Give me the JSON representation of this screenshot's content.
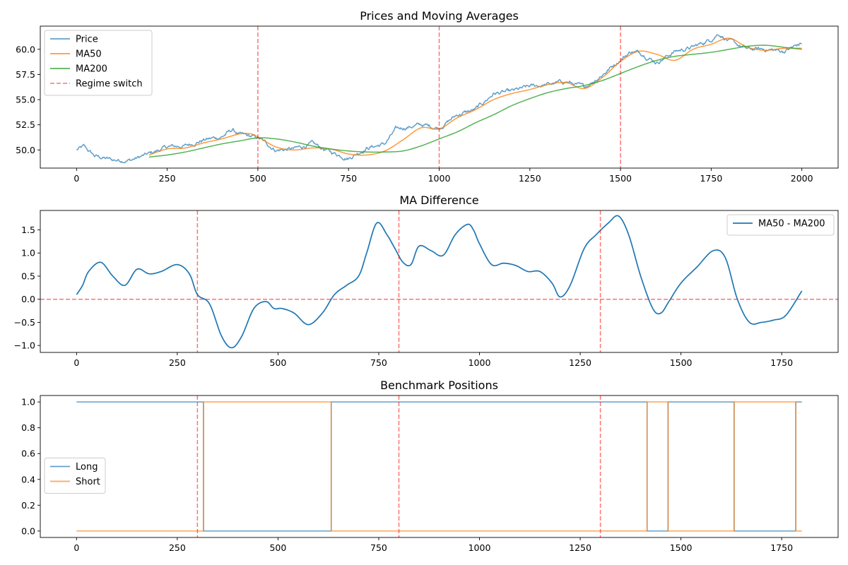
{
  "colors": {
    "price": "#1f77b4",
    "ma50": "#ff7f0e",
    "ma200": "#2ca02c",
    "regime": "#ff0000",
    "diff": "#1f77b4",
    "long": "#1f77b4",
    "short": "#ff7f0e"
  },
  "chart_data": [
    {
      "type": "line",
      "title": "Prices and Moving Averages",
      "xlim": [
        -100,
        2100
      ],
      "ylim": [
        48.2,
        62.3
      ],
      "xticks": [
        0,
        250,
        500,
        750,
        1000,
        1250,
        1500,
        1750,
        2000
      ],
      "xtick_labels": [
        "0",
        "250",
        "500",
        "750",
        "1000",
        "1250",
        "1500",
        "1750",
        "2000"
      ],
      "yticks": [
        50.0,
        52.5,
        55.0,
        57.5,
        60.0
      ],
      "ytick_labels": [
        "50.0",
        "52.5",
        "55.0",
        "57.5",
        "60.0"
      ],
      "grid": false,
      "legend_position": "upper-left",
      "legend": [
        "Price",
        "MA50",
        "MA200",
        "Regime switch"
      ],
      "vlines": [
        500,
        1000,
        1500
      ],
      "series": [
        {
          "name": "Price",
          "style": "noisy",
          "x": [
            0,
            20,
            50,
            100,
            150,
            200,
            250,
            300,
            350,
            400,
            430,
            450,
            500,
            550,
            600,
            650,
            700,
            750,
            800,
            850,
            880,
            900,
            950,
            1000,
            1050,
            1100,
            1150,
            1200,
            1250,
            1300,
            1350,
            1400,
            1450,
            1500,
            1530,
            1560,
            1600,
            1650,
            1700,
            1750,
            1770,
            1800,
            1850,
            1900,
            1950,
            2000
          ],
          "y": [
            50.0,
            50.3,
            49.4,
            49.0,
            49.0,
            49.6,
            50.3,
            50.4,
            51.0,
            51.3,
            52.0,
            51.5,
            51.2,
            50.0,
            50.1,
            50.6,
            49.8,
            49.2,
            50.2,
            50.6,
            52.0,
            52.2,
            52.5,
            52.2,
            53.5,
            54.0,
            55.6,
            55.8,
            56.3,
            56.5,
            56.8,
            56.2,
            57.5,
            59.0,
            59.8,
            59.6,
            58.7,
            59.8,
            60.2,
            61.0,
            61.6,
            60.8,
            60.0,
            60.0,
            59.8,
            60.6
          ]
        },
        {
          "name": "MA50",
          "style": "smooth",
          "x": [
            200,
            250,
            300,
            350,
            400,
            450,
            480,
            500,
            550,
            600,
            650,
            700,
            750,
            800,
            850,
            900,
            950,
            1000,
            1050,
            1100,
            1150,
            1200,
            1250,
            1300,
            1350,
            1400,
            1450,
            1500,
            1550,
            1600,
            1650,
            1700,
            1750,
            1800,
            1850,
            1900,
            1950,
            2000
          ],
          "y": [
            49.5,
            50.1,
            50.2,
            50.7,
            51.1,
            51.6,
            51.6,
            51.3,
            50.3,
            50.0,
            50.2,
            50.1,
            49.6,
            49.5,
            49.9,
            51.0,
            52.2,
            52.1,
            53.2,
            54.0,
            55.0,
            55.6,
            56.0,
            56.5,
            56.7,
            56.1,
            57.2,
            58.8,
            59.8,
            59.5,
            58.9,
            60.0,
            60.5,
            61.1,
            60.2,
            59.9,
            60.1,
            60.1
          ]
        },
        {
          "name": "MA200",
          "style": "smooth",
          "x": [
            200,
            250,
            300,
            350,
            400,
            450,
            500,
            550,
            600,
            650,
            700,
            750,
            800,
            850,
            900,
            950,
            1000,
            1050,
            1100,
            1150,
            1200,
            1250,
            1300,
            1350,
            1400,
            1450,
            1500,
            1550,
            1600,
            1650,
            1700,
            1750,
            1800,
            1850,
            1900,
            1950,
            2000
          ],
          "y": [
            49.3,
            49.5,
            49.8,
            50.2,
            50.6,
            50.9,
            51.2,
            51.1,
            50.8,
            50.4,
            50.1,
            49.9,
            49.8,
            49.8,
            49.9,
            50.4,
            51.1,
            51.8,
            52.7,
            53.5,
            54.4,
            55.1,
            55.7,
            56.1,
            56.4,
            56.9,
            57.6,
            58.3,
            58.9,
            59.3,
            59.5,
            59.7,
            60.0,
            60.3,
            60.4,
            60.2,
            60.0
          ]
        }
      ]
    },
    {
      "type": "line",
      "title": "MA Difference",
      "xlim": [
        -90,
        1890
      ],
      "ylim": [
        -1.15,
        1.92
      ],
      "xticks": [
        0,
        250,
        500,
        750,
        1000,
        1250,
        1500,
        1750
      ],
      "xtick_labels": [
        "0",
        "250",
        "500",
        "750",
        "1000",
        "1250",
        "1500",
        "1750"
      ],
      "yticks": [
        -1.0,
        -0.5,
        0.0,
        0.5,
        1.0,
        1.5
      ],
      "ytick_labels": [
        "−1.0",
        "−0.5",
        "0.0",
        "0.5",
        "1.0",
        "1.5"
      ],
      "grid": false,
      "legend_position": "upper-right",
      "legend": [
        "MA50 - MA200"
      ],
      "vlines": [
        300,
        800,
        1300
      ],
      "hline": 0.0,
      "series": [
        {
          "name": "MA50 - MA200",
          "style": "smooth",
          "x": [
            0,
            15,
            30,
            60,
            90,
            120,
            150,
            180,
            210,
            250,
            280,
            300,
            330,
            360,
            385,
            410,
            440,
            470,
            490,
            510,
            540,
            575,
            610,
            640,
            670,
            700,
            720,
            745,
            770,
            790,
            810,
            830,
            850,
            880,
            910,
            940,
            970,
            985,
            1000,
            1030,
            1060,
            1090,
            1120,
            1150,
            1180,
            1200,
            1225,
            1260,
            1290,
            1320,
            1345,
            1370,
            1400,
            1430,
            1450,
            1470,
            1500,
            1540,
            1580,
            1610,
            1640,
            1670,
            1700,
            1730,
            1760,
            1800
          ],
          "y": [
            0.1,
            0.3,
            0.6,
            0.8,
            0.5,
            0.3,
            0.65,
            0.55,
            0.6,
            0.75,
            0.55,
            0.1,
            -0.1,
            -0.8,
            -1.05,
            -0.8,
            -0.2,
            -0.05,
            -0.2,
            -0.2,
            -0.3,
            -0.55,
            -0.3,
            0.1,
            0.3,
            0.5,
            1.0,
            1.65,
            1.4,
            1.1,
            0.8,
            0.75,
            1.15,
            1.05,
            0.95,
            1.4,
            1.62,
            1.5,
            1.2,
            0.75,
            0.78,
            0.73,
            0.6,
            0.6,
            0.35,
            0.05,
            0.3,
            1.1,
            1.4,
            1.65,
            1.8,
            1.4,
            0.5,
            -0.2,
            -0.3,
            -0.05,
            0.35,
            0.7,
            1.05,
            0.9,
            0.0,
            -0.5,
            -0.5,
            -0.45,
            -0.35,
            0.18
          ]
        }
      ]
    },
    {
      "type": "line",
      "title": "Benchmark Positions",
      "xlim": [
        -90,
        1890
      ],
      "ylim": [
        -0.05,
        1.05
      ],
      "xticks": [
        0,
        250,
        500,
        750,
        1000,
        1250,
        1500,
        1750
      ],
      "xtick_labels": [
        "0",
        "250",
        "500",
        "750",
        "1000",
        "1250",
        "1500",
        "1750"
      ],
      "yticks": [
        0.0,
        0.2,
        0.4,
        0.6,
        0.8,
        1.0
      ],
      "ytick_labels": [
        "0.0",
        "0.2",
        "0.4",
        "0.6",
        "0.8",
        "1.0"
      ],
      "grid": false,
      "legend_position": "center-left",
      "legend": [
        "Long",
        "Short"
      ],
      "vlines": [
        300,
        800,
        1300
      ],
      "series": [
        {
          "name": "Long",
          "style": "step",
          "x": [
            0,
            315,
            315,
            632,
            632,
            1416,
            1416,
            1468,
            1468,
            1632,
            1632,
            1785,
            1785,
            1800
          ],
          "y": [
            1,
            1,
            0,
            0,
            1,
            1,
            0,
            0,
            1,
            1,
            0,
            0,
            1,
            1
          ]
        },
        {
          "name": "Short",
          "style": "step",
          "x": [
            0,
            315,
            315,
            632,
            632,
            1416,
            1416,
            1468,
            1468,
            1632,
            1632,
            1785,
            1785,
            1800
          ],
          "y": [
            0,
            0,
            1,
            1,
            0,
            0,
            1,
            1,
            0,
            0,
            1,
            1,
            0,
            0
          ]
        }
      ]
    }
  ]
}
